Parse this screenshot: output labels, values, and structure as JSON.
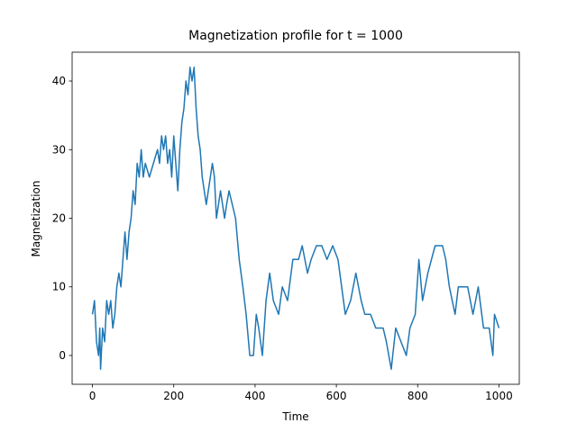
{
  "chart_data": {
    "type": "line",
    "title": "Magnetization profile for t = 1000",
    "x_label": "Time",
    "y_label": "Magnetization",
    "x": [
      0,
      5,
      10,
      15,
      18,
      20,
      25,
      30,
      35,
      40,
      45,
      50,
      55,
      60,
      65,
      70,
      75,
      80,
      85,
      90,
      95,
      100,
      105,
      110,
      115,
      120,
      125,
      130,
      140,
      150,
      160,
      165,
      170,
      175,
      180,
      185,
      190,
      195,
      200,
      205,
      210,
      215,
      220,
      225,
      230,
      235,
      240,
      245,
      250,
      255,
      260,
      265,
      270,
      275,
      280,
      285,
      290,
      295,
      300,
      305,
      310,
      315,
      320,
      325,
      330,
      336,
      352,
      361,
      370,
      378,
      387,
      396,
      403,
      409,
      418,
      427,
      436,
      445,
      458,
      467,
      480,
      493,
      507,
      516,
      529,
      538,
      551,
      564,
      577,
      591,
      604,
      613,
      622,
      635,
      648,
      661,
      670,
      684,
      697,
      715,
      723,
      735,
      746,
      759,
      772,
      781,
      794,
      803,
      812,
      825,
      843,
      861,
      869,
      878,
      892,
      900,
      923,
      936,
      949,
      962,
      976,
      985,
      989,
      1000
    ],
    "series": [
      {
        "name": "Magnetization",
        "color": "#1f77b4",
        "values": [
          6,
          8,
          2,
          0,
          4,
          -2,
          4,
          2,
          8,
          6,
          8,
          4,
          6,
          10,
          12,
          10,
          14,
          18,
          14,
          18,
          20,
          24,
          22,
          28,
          26,
          30,
          26,
          28,
          26,
          28,
          30,
          28,
          32,
          30,
          32,
          28,
          30,
          26,
          32,
          28,
          24,
          30,
          34,
          36,
          40,
          38,
          42,
          40,
          42,
          36,
          32,
          30,
          26,
          24,
          22,
          24,
          26,
          28,
          26,
          20,
          22,
          24,
          22,
          20,
          22,
          24,
          20,
          14,
          10,
          6,
          0,
          0,
          6,
          4,
          0,
          8,
          12,
          8,
          6,
          10,
          8,
          14,
          14,
          16,
          12,
          14,
          16,
          16,
          14,
          16,
          14,
          10,
          6,
          8,
          12,
          8,
          6,
          6,
          4,
          4,
          2,
          -2,
          4,
          2,
          0,
          4,
          6,
          14,
          8,
          12,
          16,
          16,
          14,
          10,
          6,
          10,
          10,
          6,
          10,
          4,
          4,
          0,
          6,
          4
        ]
      }
    ],
    "xlim": [
      -50,
      1050
    ],
    "ylim": [
      -4.2,
      44.2
    ],
    "xticks": [
      0,
      200,
      400,
      600,
      800,
      1000
    ],
    "yticks": [
      0,
      10,
      20,
      30,
      40
    ]
  }
}
